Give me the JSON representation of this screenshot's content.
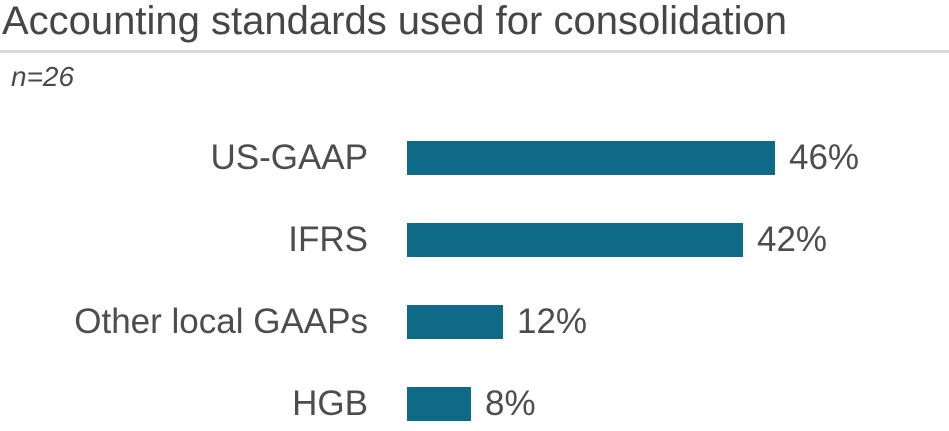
{
  "chart_data": {
    "type": "bar",
    "orientation": "horizontal",
    "title": "Accounting standards used for consolidation",
    "subtitle": "n=26",
    "categories": [
      "US-GAAP",
      "IFRS",
      "Other local GAAPs",
      "HGB"
    ],
    "values": [
      46,
      42,
      12,
      8
    ],
    "value_labels": [
      "46%",
      "42%",
      "12%",
      "8%"
    ],
    "xlabel": "",
    "ylabel": "",
    "xlim": [
      0,
      50
    ],
    "grid": false,
    "legend": false,
    "axis_visible": false,
    "bar_color": "#0e6a87",
    "label_color": "#4d4d4d",
    "title_color": "#464646",
    "divider_color": "#d9d9d9"
  }
}
